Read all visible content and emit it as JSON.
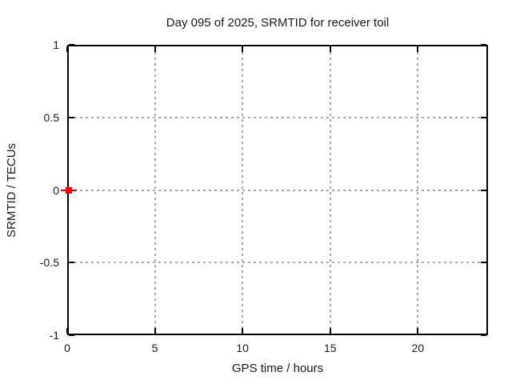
{
  "chart_data": {
    "type": "scatter",
    "title": "Day 095 of 2025, SRMTID for receiver toil",
    "xlabel": "GPS time / hours",
    "ylabel": "SRMTID / TECUs",
    "xlim": [
      0,
      24
    ],
    "ylim": [
      -1,
      1
    ],
    "xticks": [
      0,
      5,
      10,
      15,
      20
    ],
    "yticks": [
      -1,
      -0.5,
      0,
      0.5,
      1
    ],
    "grid": true,
    "grid_style": "dotted",
    "legend": "none",
    "series": [
      {
        "name": "SRMTID",
        "marker": "filled-square",
        "marker_size": 8,
        "color": "#ff0000",
        "points": [
          {
            "x": 0.1,
            "y": 0
          }
        ],
        "xerror": [
          [
            -0.35,
            0.55
          ]
        ]
      }
    ],
    "colors": {
      "background": "#ffffff",
      "axis": "#000000",
      "grid": "#a8a8a8",
      "text": "#1a1a1a",
      "series": "#ff0000"
    }
  }
}
